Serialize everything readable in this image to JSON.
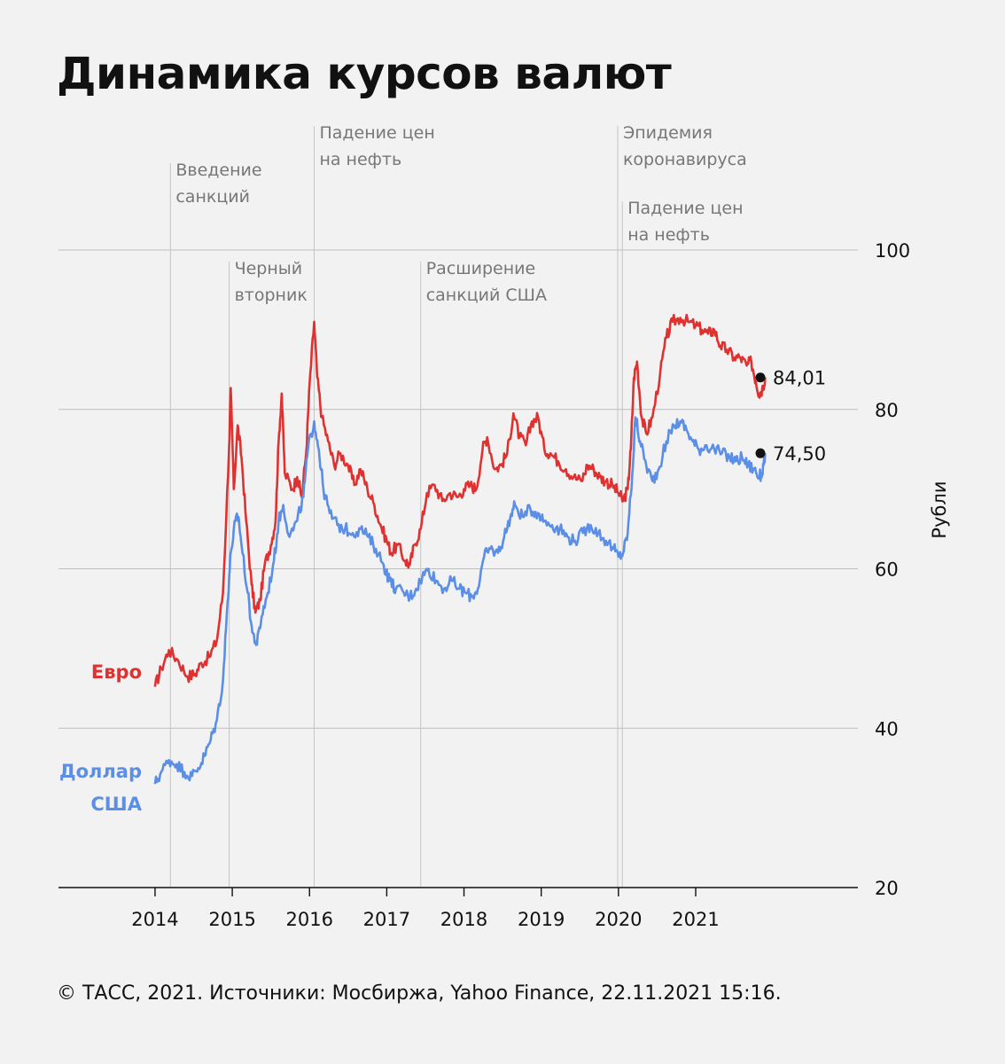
{
  "title": "Динамика курсов валют",
  "footer": "© ТАСС, 2021. Источники: Мосбиржа, Yahoo Finance, 22.11.2021 15:16.",
  "chart_data": {
    "type": "line",
    "title": "Динамика курсов валют",
    "ylabel": "Рубли",
    "xlabel": "",
    "ylim": [
      20,
      100
    ],
    "yticks": [
      20,
      40,
      60,
      80,
      100
    ],
    "xlim": [
      2012.75,
      2023.1
    ],
    "xticks": [
      {
        "value": 2014,
        "label": "2014"
      },
      {
        "value": 2015,
        "label": "2015"
      },
      {
        "value": 2016,
        "label": "2016"
      },
      {
        "value": 2017,
        "label": "2017"
      },
      {
        "value": 2018,
        "label": "2018"
      },
      {
        "value": 2019,
        "label": "2019"
      },
      {
        "value": 2020,
        "label": "2020"
      },
      {
        "value": 2021,
        "label": "2021"
      }
    ],
    "grid": true,
    "annotations": [
      {
        "x": 2014.2,
        "lines": [
          "Введение",
          "санкций"
        ],
        "level": 2
      },
      {
        "x": 2014.96,
        "lines": [
          "Черный",
          "вторник"
        ],
        "level": 4
      },
      {
        "x": 2016.06,
        "lines": [
          "Падение цен",
          "на нефть"
        ],
        "level": 1
      },
      {
        "x": 2017.44,
        "lines": [
          "Расширение",
          "санкций США"
        ],
        "level": 4
      },
      {
        "x": 2019.99,
        "lines": [
          "Эпидемия",
          "коронавируса"
        ],
        "level": 1
      },
      {
        "x": 2020.05,
        "lines": [
          "Падение цен",
          "на нефть"
        ],
        "level": 3
      }
    ],
    "series": [
      {
        "name": "Евро",
        "color": "#e03131",
        "end_label": "84,01",
        "end_value": 84.01,
        "points": [
          [
            2014.0,
            45.2
          ],
          [
            2014.08,
            47.5
          ],
          [
            2014.18,
            49.8
          ],
          [
            2014.3,
            48.5
          ],
          [
            2014.42,
            46.5
          ],
          [
            2014.52,
            46.8
          ],
          [
            2014.6,
            48.2
          ],
          [
            2014.7,
            48.9
          ],
          [
            2014.8,
            51.0
          ],
          [
            2014.88,
            57.0
          ],
          [
            2014.96,
            75.5
          ],
          [
            2014.98,
            82.7
          ],
          [
            2015.02,
            70.0
          ],
          [
            2015.07,
            78.0
          ],
          [
            2015.12,
            74.0
          ],
          [
            2015.18,
            66.0
          ],
          [
            2015.25,
            58.0
          ],
          [
            2015.3,
            54.5
          ],
          [
            2015.36,
            56.0
          ],
          [
            2015.42,
            60.5
          ],
          [
            2015.5,
            63.0
          ],
          [
            2015.56,
            66.0
          ],
          [
            2015.6,
            76.0
          ],
          [
            2015.64,
            82.0
          ],
          [
            2015.68,
            72.0
          ],
          [
            2015.78,
            70.0
          ],
          [
            2015.84,
            71.5
          ],
          [
            2015.9,
            69.0
          ],
          [
            2015.96,
            75.0
          ],
          [
            2016.0,
            83.0
          ],
          [
            2016.06,
            91.0
          ],
          [
            2016.1,
            84.0
          ],
          [
            2016.16,
            79.0
          ],
          [
            2016.24,
            76.0
          ],
          [
            2016.32,
            73.0
          ],
          [
            2016.4,
            74.5
          ],
          [
            2016.5,
            73.0
          ],
          [
            2016.58,
            70.5
          ],
          [
            2016.66,
            72.5
          ],
          [
            2016.75,
            70.0
          ],
          [
            2016.84,
            68.0
          ],
          [
            2016.92,
            65.5
          ],
          [
            2017.0,
            63.5
          ],
          [
            2017.06,
            62.0
          ],
          [
            2017.14,
            63.0
          ],
          [
            2017.24,
            61.0
          ],
          [
            2017.3,
            60.5
          ],
          [
            2017.36,
            63.0
          ],
          [
            2017.44,
            65.0
          ],
          [
            2017.52,
            69.5
          ],
          [
            2017.62,
            70.5
          ],
          [
            2017.72,
            68.5
          ],
          [
            2017.82,
            69.5
          ],
          [
            2017.92,
            69.0
          ],
          [
            2018.0,
            70.0
          ],
          [
            2018.08,
            70.5
          ],
          [
            2018.16,
            70.0
          ],
          [
            2018.24,
            75.0
          ],
          [
            2018.3,
            76.5
          ],
          [
            2018.4,
            72.5
          ],
          [
            2018.48,
            73.0
          ],
          [
            2018.56,
            74.5
          ],
          [
            2018.64,
            79.5
          ],
          [
            2018.72,
            76.5
          ],
          [
            2018.8,
            75.5
          ],
          [
            2018.88,
            78.5
          ],
          [
            2018.96,
            79.0
          ],
          [
            2019.04,
            75.0
          ],
          [
            2019.12,
            74.5
          ],
          [
            2019.22,
            73.5
          ],
          [
            2019.32,
            72.5
          ],
          [
            2019.42,
            71.5
          ],
          [
            2019.52,
            71.0
          ],
          [
            2019.6,
            73.0
          ],
          [
            2019.68,
            72.5
          ],
          [
            2019.76,
            71.5
          ],
          [
            2019.84,
            71.0
          ],
          [
            2019.92,
            70.5
          ],
          [
            2020.0,
            69.5
          ],
          [
            2020.06,
            68.5
          ],
          [
            2020.12,
            70.0
          ],
          [
            2020.16,
            75.0
          ],
          [
            2020.2,
            84.0
          ],
          [
            2020.24,
            86.0
          ],
          [
            2020.3,
            79.0
          ],
          [
            2020.36,
            77.0
          ],
          [
            2020.44,
            79.0
          ],
          [
            2020.54,
            84.5
          ],
          [
            2020.62,
            89.0
          ],
          [
            2020.7,
            91.0
          ],
          [
            2020.8,
            91.5
          ],
          [
            2020.9,
            91.0
          ],
          [
            2021.0,
            90.5
          ],
          [
            2021.08,
            90.0
          ],
          [
            2021.16,
            89.5
          ],
          [
            2021.24,
            90.0
          ],
          [
            2021.32,
            88.0
          ],
          [
            2021.4,
            87.5
          ],
          [
            2021.5,
            86.5
          ],
          [
            2021.58,
            86.5
          ],
          [
            2021.66,
            85.5
          ],
          [
            2021.72,
            86.0
          ],
          [
            2021.78,
            83.5
          ],
          [
            2021.82,
            82.0
          ],
          [
            2021.86,
            82.5
          ],
          [
            2021.9,
            84.01
          ]
        ]
      },
      {
        "name": "Доллар США",
        "color": "#5b8ee6",
        "end_label": "74,50",
        "end_value": 74.5,
        "points": [
          [
            2014.0,
            33.0
          ],
          [
            2014.08,
            34.5
          ],
          [
            2014.18,
            36.0
          ],
          [
            2014.28,
            35.5
          ],
          [
            2014.38,
            34.5
          ],
          [
            2014.48,
            34.0
          ],
          [
            2014.56,
            35.0
          ],
          [
            2014.64,
            36.5
          ],
          [
            2014.72,
            38.5
          ],
          [
            2014.8,
            41.0
          ],
          [
            2014.88,
            46.0
          ],
          [
            2014.94,
            56.0
          ],
          [
            2014.98,
            62.0
          ],
          [
            2015.04,
            66.0
          ],
          [
            2015.08,
            66.5
          ],
          [
            2015.12,
            63.0
          ],
          [
            2015.2,
            57.0
          ],
          [
            2015.26,
            52.0
          ],
          [
            2015.32,
            50.5
          ],
          [
            2015.38,
            54.0
          ],
          [
            2015.46,
            57.0
          ],
          [
            2015.54,
            61.0
          ],
          [
            2015.6,
            66.0
          ],
          [
            2015.66,
            68.0
          ],
          [
            2015.74,
            64.0
          ],
          [
            2015.84,
            66.0
          ],
          [
            2015.92,
            69.0
          ],
          [
            2015.98,
            75.0
          ],
          [
            2016.06,
            78.5
          ],
          [
            2016.12,
            75.0
          ],
          [
            2016.18,
            70.0
          ],
          [
            2016.26,
            67.0
          ],
          [
            2016.36,
            65.5
          ],
          [
            2016.46,
            65.0
          ],
          [
            2016.56,
            64.5
          ],
          [
            2016.66,
            65.0
          ],
          [
            2016.76,
            64.0
          ],
          [
            2016.86,
            62.5
          ],
          [
            2016.96,
            60.5
          ],
          [
            2017.04,
            58.5
          ],
          [
            2017.12,
            57.5
          ],
          [
            2017.22,
            57.0
          ],
          [
            2017.3,
            56.5
          ],
          [
            2017.38,
            57.5
          ],
          [
            2017.46,
            59.0
          ],
          [
            2017.54,
            60.0
          ],
          [
            2017.64,
            58.5
          ],
          [
            2017.74,
            57.5
          ],
          [
            2017.84,
            58.5
          ],
          [
            2017.94,
            57.5
          ],
          [
            2018.02,
            57.0
          ],
          [
            2018.1,
            56.5
          ],
          [
            2018.18,
            57.5
          ],
          [
            2018.26,
            61.5
          ],
          [
            2018.34,
            62.5
          ],
          [
            2018.44,
            62.0
          ],
          [
            2018.52,
            64.0
          ],
          [
            2018.6,
            66.5
          ],
          [
            2018.66,
            68.0
          ],
          [
            2018.76,
            66.5
          ],
          [
            2018.86,
            67.5
          ],
          [
            2018.96,
            67.0
          ],
          [
            2019.04,
            66.0
          ],
          [
            2019.14,
            65.5
          ],
          [
            2019.24,
            65.0
          ],
          [
            2019.34,
            64.0
          ],
          [
            2019.44,
            63.5
          ],
          [
            2019.54,
            64.5
          ],
          [
            2019.64,
            65.5
          ],
          [
            2019.74,
            64.5
          ],
          [
            2019.84,
            63.5
          ],
          [
            2019.94,
            62.5
          ],
          [
            2020.0,
            61.5
          ],
          [
            2020.06,
            62.0
          ],
          [
            2020.12,
            64.5
          ],
          [
            2020.18,
            72.0
          ],
          [
            2020.22,
            79.0
          ],
          [
            2020.28,
            76.0
          ],
          [
            2020.36,
            73.0
          ],
          [
            2020.44,
            71.0
          ],
          [
            2020.52,
            72.5
          ],
          [
            2020.62,
            76.0
          ],
          [
            2020.72,
            78.0
          ],
          [
            2020.8,
            78.5
          ],
          [
            2020.88,
            77.5
          ],
          [
            2020.96,
            76.0
          ],
          [
            2021.04,
            75.0
          ],
          [
            2021.14,
            75.5
          ],
          [
            2021.24,
            75.0
          ],
          [
            2021.34,
            74.5
          ],
          [
            2021.44,
            74.0
          ],
          [
            2021.52,
            73.5
          ],
          [
            2021.6,
            74.0
          ],
          [
            2021.68,
            73.0
          ],
          [
            2021.76,
            72.5
          ],
          [
            2021.82,
            71.5
          ],
          [
            2021.86,
            72.0
          ],
          [
            2021.9,
            74.5
          ]
        ]
      }
    ]
  }
}
